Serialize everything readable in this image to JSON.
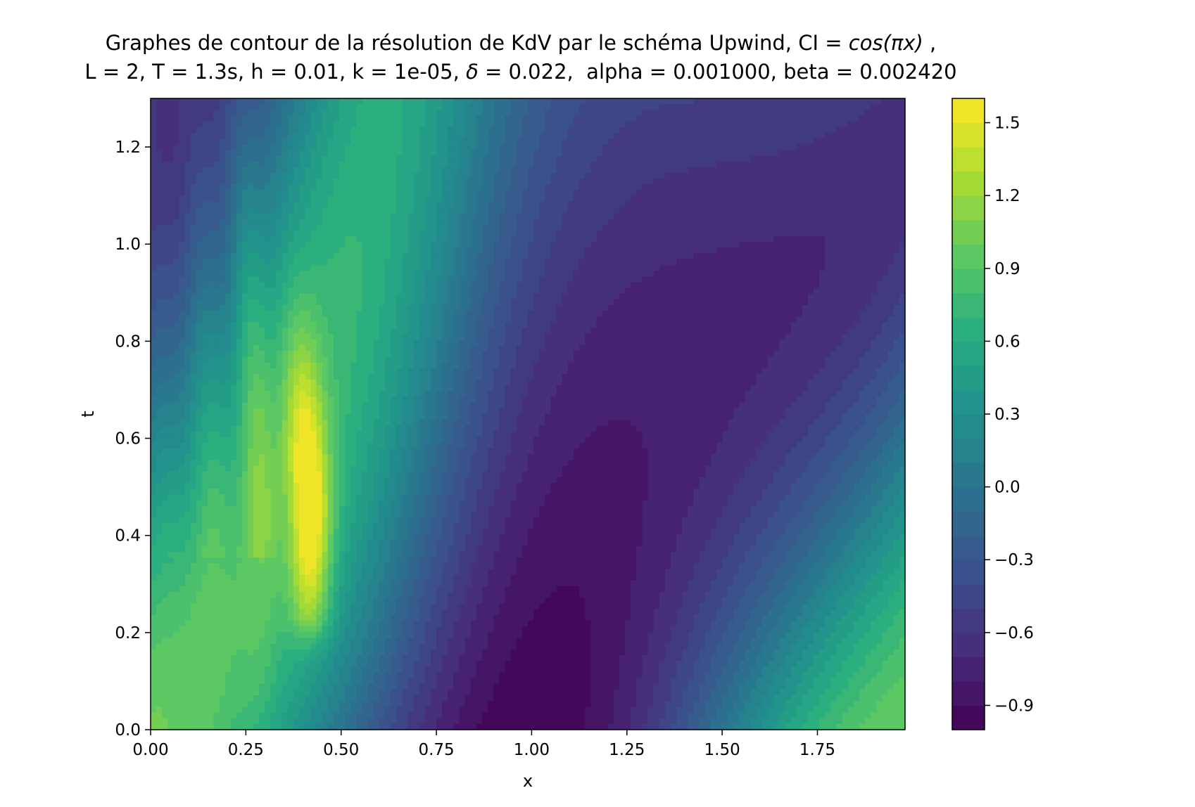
{
  "chart_data": {
    "type": "heatmap",
    "subtype": "filled-contour",
    "title_line1_prefix": "Graphes de contour de la résolution de KdV par le schéma Upwind, CI = ",
    "title_line1_math": "cos(πx)",
    "title_line1_suffix": " ,",
    "title_line2_a": "L = 2, T = 1.3s, h = 0.01, k = 1e-05, ",
    "title_line2_delta": "δ",
    "title_line2_b": " = 0.022,  alpha = 0.001000, beta = 0.002420",
    "xlabel": "x",
    "ylabel": "t",
    "xlim": [
      0,
      1.98
    ],
    "ylim": [
      0,
      1.3
    ],
    "x_ticks": [
      "0.00",
      "0.25",
      "0.50",
      "0.75",
      "1.00",
      "1.25",
      "1.50",
      "1.75"
    ],
    "x_tick_values": [
      0,
      0.25,
      0.5,
      0.75,
      1.0,
      1.25,
      1.5,
      1.75
    ],
    "y_ticks": [
      "0.0",
      "0.2",
      "0.4",
      "0.6",
      "0.8",
      "1.0",
      "1.2"
    ],
    "y_tick_values": [
      0,
      0.2,
      0.4,
      0.6,
      0.8,
      1.0,
      1.2
    ],
    "colormap": "viridis",
    "colorbar": {
      "range": [
        -1.0,
        1.6
      ],
      "levels_step": 0.1,
      "ticks": [
        "−0.9",
        "−0.6",
        "−0.3",
        "0.0",
        "0.3",
        "0.6",
        "0.9",
        "1.2",
        "1.5"
      ],
      "tick_values": [
        -0.9,
        -0.6,
        -0.3,
        0.0,
        0.3,
        0.6,
        0.9,
        1.2,
        1.5
      ]
    },
    "features": [
      {
        "name": "soliton-ridge",
        "x_at_t0.4": 0.42,
        "x_at_t1.3": 0.32,
        "peak_value": 1.55,
        "peak_t": 0.45
      },
      {
        "name": "trough",
        "x_at_t0": 0.92,
        "min_value": -0.98
      },
      {
        "name": "initial-condition",
        "expression": "cos(pi x)"
      }
    ]
  }
}
